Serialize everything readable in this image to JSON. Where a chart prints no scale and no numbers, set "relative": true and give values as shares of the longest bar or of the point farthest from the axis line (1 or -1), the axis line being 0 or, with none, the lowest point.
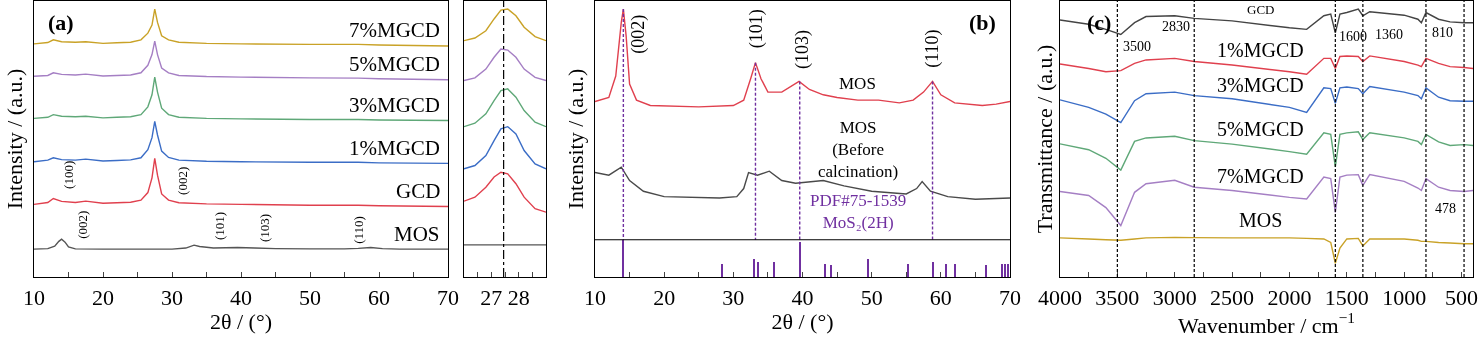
{
  "chart_data": [
    {
      "type": "line",
      "relative": true,
      "xlabel": "2θ / (°)",
      "ylabel": "Intensity / (a.u.)",
      "xlim": [
        10,
        70
      ],
      "xticks": [
        10,
        {
          "value": 15,
          "label": null
        },
        20,
        {
          "value": 25,
          "label": null
        },
        30,
        {
          "value": 35,
          "label": null
        },
        40,
        {
          "value": 45,
          "label": null
        },
        50,
        {
          "value": 55,
          "label": null
        },
        60,
        {
          "value": 65,
          "label": null
        },
        70
      ],
      "x": [
        10,
        12,
        12.8,
        14,
        16,
        17.5,
        20,
        22,
        24,
        25.5,
        26.5,
        27.1,
        27.5,
        27.9,
        28.5,
        29.5,
        31,
        35,
        40,
        50,
        57,
        60,
        70
      ],
      "series": [
        {
          "name": "7%MGCD",
          "color": "#c9a227",
          "values": [
            0.87,
            0.875,
            0.885,
            0.878,
            0.876,
            0.878,
            0.872,
            0.874,
            0.876,
            0.885,
            0.91,
            0.94,
            1.0,
            0.95,
            0.9,
            0.885,
            0.876,
            0.872,
            0.87,
            0.868,
            0.868,
            0.866,
            0.862
          ]
        },
        {
          "name": "5%MGCD",
          "color": "#a57fc4",
          "values": [
            0.749,
            0.752,
            0.762,
            0.756,
            0.754,
            0.757,
            0.75,
            0.752,
            0.754,
            0.762,
            0.79,
            0.83,
            0.88,
            0.83,
            0.78,
            0.762,
            0.752,
            0.748,
            0.746,
            0.743,
            0.742,
            0.74,
            0.736
          ]
        },
        {
          "name": "3%MGCD",
          "color": "#5fa878",
          "values": [
            0.592,
            0.596,
            0.606,
            0.6,
            0.598,
            0.6,
            0.594,
            0.596,
            0.598,
            0.606,
            0.635,
            0.68,
            0.746,
            0.69,
            0.63,
            0.606,
            0.596,
            0.592,
            0.59,
            0.588,
            0.588,
            0.586,
            0.584
          ]
        },
        {
          "name": "1%MGCD",
          "color": "#3b6dc6",
          "values": [
            0.43,
            0.436,
            0.445,
            0.438,
            0.436,
            0.44,
            0.433,
            0.435,
            0.437,
            0.445,
            0.475,
            0.52,
            0.581,
            0.53,
            0.47,
            0.446,
            0.436,
            0.432,
            0.43,
            0.428,
            0.428,
            0.426,
            0.424
          ]
        },
        {
          "name": "GCD",
          "color": "#e0404e",
          "values": [
            0.271,
            0.278,
            0.293,
            0.282,
            0.278,
            0.283,
            0.275,
            0.277,
            0.279,
            0.287,
            0.315,
            0.37,
            0.443,
            0.38,
            0.31,
            0.287,
            0.277,
            0.273,
            0.271,
            0.268,
            0.268,
            0.266,
            0.263
          ]
        },
        {
          "name": "MOS",
          "color": "#555555",
          "x": [
            10,
            12,
            13,
            13.6,
            14,
            14.5,
            15,
            16,
            20,
            25,
            30,
            32,
            33.2,
            34,
            36,
            39.5,
            42,
            45,
            50,
            55,
            57,
            58.8,
            60.5,
            63,
            70
          ],
          "values": [
            0.104,
            0.106,
            0.115,
            0.133,
            0.141,
            0.13,
            0.112,
            0.105,
            0.104,
            0.104,
            0.104,
            0.108,
            0.119,
            0.114,
            0.108,
            0.11,
            0.108,
            0.106,
            0.105,
            0.105,
            0.107,
            0.11,
            0.106,
            0.104,
            0.104
          ]
        }
      ],
      "legend": "right",
      "annotations": [
        "(a)",
        "(100)",
        "(002)",
        "(002)",
        "(101)",
        "(103)",
        "(110)"
      ]
    },
    {
      "type": "line",
      "relative": true,
      "xlim": [
        26,
        29
      ],
      "xticks": [
        {
          "value": 26.5,
          "label": null
        },
        27,
        {
          "value": 27.5,
          "label": null
        },
        28,
        {
          "value": 28.5,
          "label": null
        }
      ],
      "x": [
        26,
        26.4,
        26.8,
        27.1,
        27.35,
        27.6,
        27.9,
        28.2,
        28.6,
        29
      ],
      "series": [
        {
          "color": "#c9a227",
          "values": [
            0.882,
            0.892,
            0.919,
            0.963,
            0.996,
            1.0,
            0.975,
            0.932,
            0.897,
            0.882
          ]
        },
        {
          "color": "#a57fc4",
          "values": [
            0.733,
            0.743,
            0.776,
            0.82,
            0.851,
            0.847,
            0.82,
            0.776,
            0.745,
            0.733
          ]
        },
        {
          "color": "#5fa878",
          "values": [
            0.561,
            0.574,
            0.609,
            0.658,
            0.696,
            0.702,
            0.671,
            0.621,
            0.578,
            0.561
          ]
        },
        {
          "color": "#3b6dc6",
          "values": [
            0.404,
            0.416,
            0.453,
            0.509,
            0.553,
            0.561,
            0.534,
            0.472,
            0.422,
            0.404
          ]
        },
        {
          "color": "#e0404e",
          "values": [
            0.283,
            0.298,
            0.335,
            0.373,
            0.391,
            0.385,
            0.348,
            0.298,
            0.255,
            0.242
          ]
        },
        {
          "color": "#555555",
          "x": [
            26,
            29
          ],
          "values": [
            0.12,
            0.12
          ]
        }
      ],
      "ref_lines": [
        {
          "axis": "x",
          "value": 27.45,
          "color": "#000000",
          "line_style": "dashdot"
        }
      ]
    },
    {
      "type": "line",
      "relative": true,
      "xlabel": "2θ / (°)",
      "ylabel": "Intensity / (a.u.)",
      "xlim": [
        10,
        70
      ],
      "xticks": [
        10,
        {
          "value": 15,
          "label": null
        },
        20,
        {
          "value": 25,
          "label": null
        },
        30,
        {
          "value": 35,
          "label": null
        },
        40,
        {
          "value": 45,
          "label": null
        },
        50,
        {
          "value": 55,
          "label": null
        },
        60,
        {
          "value": 65,
          "label": null
        },
        70
      ],
      "series": [
        {
          "name": "MOS",
          "color": "#e0404e",
          "x": [
            10,
            12,
            13,
            13.8,
            14.1,
            14.5,
            15,
            16,
            18,
            25,
            30,
            31.5,
            32.5,
            33.2,
            34,
            35,
            37,
            39.5,
            41,
            43,
            45,
            48,
            51,
            54,
            56,
            57.5,
            58.8,
            60,
            62,
            66,
            68,
            70
          ],
          "values": [
            0.655,
            0.67,
            0.75,
            0.95,
            1.0,
            0.9,
            0.72,
            0.66,
            0.64,
            0.635,
            0.64,
            0.66,
            0.74,
            0.8,
            0.74,
            0.69,
            0.69,
            0.73,
            0.7,
            0.68,
            0.67,
            0.66,
            0.66,
            0.65,
            0.66,
            0.69,
            0.73,
            0.68,
            0.65,
            0.64,
            0.645,
            0.655
          ]
        },
        {
          "name": "MOS\n(Before\ncalcination)",
          "color": "#4a4a4a",
          "x": [
            10,
            12,
            13.8,
            15,
            17,
            20,
            28,
            30.5,
            31.5,
            32.2,
            33.5,
            35.2,
            37,
            39,
            43,
            46,
            50,
            55,
            56.5,
            57.3,
            58.5,
            61,
            65,
            70
          ],
          "values": [
            0.39,
            0.38,
            0.41,
            0.36,
            0.32,
            0.3,
            0.295,
            0.3,
            0.33,
            0.39,
            0.38,
            0.395,
            0.36,
            0.35,
            0.36,
            0.34,
            0.32,
            0.31,
            0.33,
            0.356,
            0.32,
            0.3,
            0.29,
            0.295
          ]
        },
        {
          "name": "PDF#75-1539\nMoS₂(2H)",
          "type": "bar",
          "color": "#7030a0",
          "x": [
            14.1,
            28.4,
            33.0,
            33.5,
            35.9,
            39.6,
            43.3,
            44.1,
            49.5,
            55.3,
            58.8,
            60.7,
            62.1,
            66.5,
            68.9,
            69.3,
            69.7
          ],
          "values": [
            0.139,
            0.049,
            0.067,
            0.056,
            0.056,
            0.13,
            0.05,
            0.045,
            0.067,
            0.05,
            0.056,
            0.05,
            0.05,
            0.045,
            0.05,
            0.05,
            0.05
          ]
        },
        {
          "color": "#7030a0",
          "line_style": "dashed",
          "x": [
            14.1,
            14.1
          ],
          "values": [
            1.0,
            0.139
          ]
        },
        {
          "color": "#7030a0",
          "line_style": "dashed",
          "x": [
            33.2,
            33.2
          ],
          "values": [
            0.8,
            0.139
          ]
        },
        {
          "color": "#7030a0",
          "line_style": "dashed",
          "x": [
            39.6,
            39.6
          ],
          "values": [
            0.73,
            0.139
          ]
        },
        {
          "color": "#7030a0",
          "line_style": "dashed",
          "x": [
            58.8,
            58.8
          ],
          "values": [
            0.73,
            0.139
          ]
        }
      ],
      "ref_lines": [
        {
          "axis": "y",
          "value": 0.139,
          "color": "#000000",
          "line_style": "solid"
        }
      ],
      "annotations": [
        "(b)",
        "(002)",
        "(101)",
        "(103)",
        "(110)"
      ]
    },
    {
      "type": "line",
      "relative": true,
      "xlabel": "Wavenumber / cm$^{−1}$",
      "ylabel": "Transmittance / (a.u.)",
      "xlim": [
        4000,
        400
      ],
      "xticks": [
        4000,
        {
          "value": 3750,
          "label": null
        },
        3500,
        {
          "value": 3250,
          "label": null
        },
        3000,
        {
          "value": 2750,
          "label": null
        },
        2500,
        {
          "value": 2250,
          "label": null
        },
        2000,
        {
          "value": 1750,
          "label": null
        },
        1500,
        {
          "value": 1250,
          "label": null
        },
        1000,
        {
          "value": 750,
          "label": null
        },
        500
      ],
      "x": [
        4000,
        3750,
        3600,
        3470,
        3350,
        3250,
        3000,
        2830,
        2500,
        2000,
        1850,
        1700,
        1640,
        1600,
        1560,
        1500,
        1400,
        1360,
        1300,
        1000,
        880,
        850,
        810,
        700,
        600,
        478,
        400
      ],
      "series": [
        {
          "name": "GCD",
          "color": "#444444",
          "values": [
            0.959,
            0.943,
            0.924,
            0.905,
            0.949,
            0.972,
            0.975,
            0.965,
            0.956,
            0.93,
            0.924,
            0.975,
            0.981,
            0.911,
            0.981,
            0.987,
            1.0,
            0.975,
            0.99,
            0.977,
            0.962,
            0.949,
            0.987,
            0.962,
            0.952,
            0.949,
            0.949
          ]
        },
        {
          "name": "1%MGCD",
          "color": "#e0404e",
          "values": [
            0.795,
            0.778,
            0.766,
            0.77,
            0.797,
            0.81,
            0.816,
            0.804,
            0.791,
            0.766,
            0.757,
            0.816,
            0.816,
            0.778,
            0.823,
            0.825,
            0.823,
            0.804,
            0.825,
            0.804,
            0.791,
            0.785,
            0.816,
            0.797,
            0.785,
            0.782,
            0.778
          ]
        },
        {
          "name": "3%MGCD",
          "color": "#3b6dc6",
          "values": [
            0.661,
            0.633,
            0.608,
            0.576,
            0.658,
            0.684,
            0.69,
            0.677,
            0.665,
            0.633,
            0.614,
            0.706,
            0.703,
            0.648,
            0.706,
            0.709,
            0.703,
            0.684,
            0.711,
            0.69,
            0.677,
            0.665,
            0.706,
            0.671,
            0.658,
            0.656,
            0.656
          ]
        },
        {
          "name": "5%MGCD",
          "color": "#5fa878",
          "values": [
            0.497,
            0.475,
            0.443,
            0.399,
            0.506,
            0.519,
            0.525,
            0.509,
            0.496,
            0.468,
            0.458,
            0.538,
            0.532,
            0.411,
            0.532,
            0.538,
            0.542,
            0.513,
            0.538,
            0.519,
            0.506,
            0.494,
            0.532,
            0.504,
            0.491,
            0.494,
            0.491
          ]
        },
        {
          "name": "7%MGCD",
          "color": "#a57fc4",
          "values": [
            0.319,
            0.304,
            0.259,
            0.192,
            0.316,
            0.348,
            0.361,
            0.335,
            0.323,
            0.297,
            0.291,
            0.373,
            0.367,
            0.241,
            0.373,
            0.38,
            0.382,
            0.342,
            0.382,
            0.357,
            0.332,
            0.323,
            0.367,
            0.335,
            0.323,
            0.319,
            0.323
          ]
        },
        {
          "name": "MOS",
          "color": "#c9a227",
          "values": [
            0.146,
            0.142,
            0.139,
            0.137,
            0.142,
            0.146,
            0.148,
            0.147,
            0.146,
            0.146,
            0.144,
            0.142,
            0.129,
            0.051,
            0.108,
            0.142,
            0.144,
            0.116,
            0.142,
            0.142,
            0.137,
            0.133,
            0.133,
            0.129,
            0.127,
            0.124,
            0.124
          ]
        }
      ],
      "ref_lines": [
        {
          "axis": "x",
          "value": 3500,
          "label": "3500",
          "color": "#000000",
          "line_style": "dashed"
        },
        {
          "axis": "x",
          "value": 2830,
          "label": "2830",
          "color": "#000000",
          "line_style": "dashed"
        },
        {
          "axis": "x",
          "value": 1600,
          "label": "1600",
          "color": "#000000",
          "line_style": "dashed"
        },
        {
          "axis": "x",
          "value": 1360,
          "label": "1360",
          "color": "#000000",
          "line_style": "dashed"
        },
        {
          "axis": "x",
          "value": 810,
          "label": "810",
          "color": "#000000",
          "line_style": "dashed"
        },
        {
          "axis": "x",
          "value": 478,
          "label": "478",
          "color": "#000000",
          "line_style": "dashed"
        }
      ],
      "annotations": [
        "(c)"
      ]
    }
  ]
}
